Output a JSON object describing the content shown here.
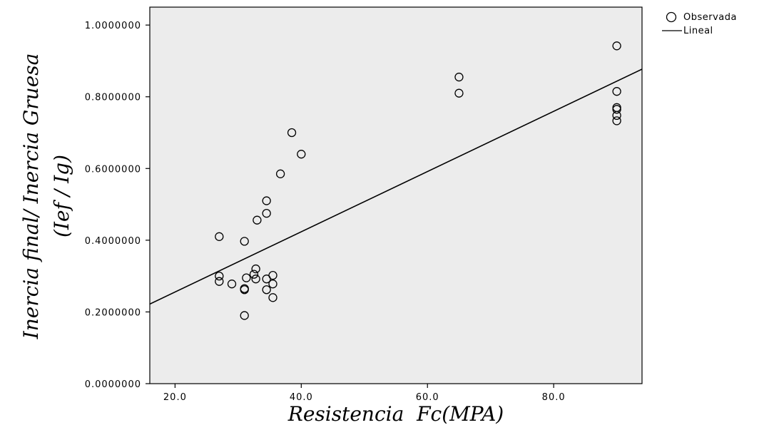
{
  "chart_data": {
    "type": "scatter",
    "xlabel": "Resistencia  Fc(MPA)",
    "ylabel_line1": "Inercia final/ Inercia Gruesa",
    "ylabel_line2": "(Ief / Ig)",
    "xlim": [
      16,
      94
    ],
    "ylim": [
      0,
      1.05
    ],
    "x_ticks": [
      20,
      40,
      60,
      80
    ],
    "x_tick_labels": [
      "20.0",
      "40.0",
      "60.0",
      "80.0"
    ],
    "y_ticks": [
      0,
      0.2,
      0.4,
      0.6,
      0.8,
      1.0
    ],
    "y_tick_labels": [
      "0.0000000",
      "0.2000000",
      "0.4000000",
      "0.6000000",
      "0.8000000",
      "1.0000000"
    ],
    "grid": false,
    "legend_position": "top-right",
    "series": [
      {
        "name": "Observada",
        "marker": "open-circle",
        "points": [
          {
            "x": 27.0,
            "y": 0.41
          },
          {
            "x": 27.0,
            "y": 0.3
          },
          {
            "x": 27.0,
            "y": 0.285
          },
          {
            "x": 29.0,
            "y": 0.278
          },
          {
            "x": 31.0,
            "y": 0.397
          },
          {
            "x": 31.0,
            "y": 0.265
          },
          {
            "x": 31.0,
            "y": 0.262
          },
          {
            "x": 31.0,
            "y": 0.19
          },
          {
            "x": 31.3,
            "y": 0.295
          },
          {
            "x": 32.5,
            "y": 0.305
          },
          {
            "x": 32.8,
            "y": 0.32
          },
          {
            "x": 32.8,
            "y": 0.292
          },
          {
            "x": 33.0,
            "y": 0.456
          },
          {
            "x": 34.5,
            "y": 0.51
          },
          {
            "x": 34.5,
            "y": 0.475
          },
          {
            "x": 34.5,
            "y": 0.292
          },
          {
            "x": 34.5,
            "y": 0.262
          },
          {
            "x": 35.5,
            "y": 0.302
          },
          {
            "x": 35.5,
            "y": 0.278
          },
          {
            "x": 35.5,
            "y": 0.24
          },
          {
            "x": 36.7,
            "y": 0.585
          },
          {
            "x": 38.5,
            "y": 0.7
          },
          {
            "x": 40.0,
            "y": 0.64
          },
          {
            "x": 65.0,
            "y": 0.855
          },
          {
            "x": 65.0,
            "y": 0.81
          },
          {
            "x": 90.0,
            "y": 0.942
          },
          {
            "x": 90.0,
            "y": 0.815
          },
          {
            "x": 90.0,
            "y": 0.77
          },
          {
            "x": 90.0,
            "y": 0.765
          },
          {
            "x": 90.0,
            "y": 0.748
          },
          {
            "x": 90.0,
            "y": 0.733
          }
        ]
      },
      {
        "name": "Lineal",
        "marker": "line",
        "line": {
          "x": [
            16,
            94
          ],
          "y": [
            0.222,
            0.877
          ]
        }
      }
    ]
  }
}
